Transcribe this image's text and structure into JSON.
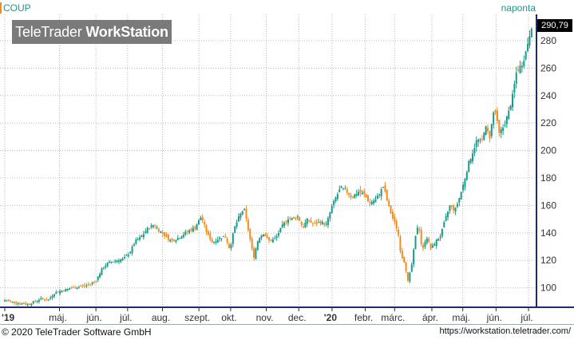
{
  "header": {
    "ticker": "COUP",
    "period": "naponta",
    "logo_light": "TeleTrader ",
    "logo_bold": "WorkStation"
  },
  "last_price_label": "290,79",
  "footer": {
    "copyright": "© 2020 TeleTrader Software GmbH",
    "url": "https://workstation.teletrader.com/"
  },
  "colors": {
    "up": "#1a9a86",
    "down": "#f28c1e",
    "grid": "#b8b8b8",
    "axis": "#1d2a6b"
  },
  "chart_data": {
    "type": "candlestick",
    "ylim": [
      87,
      298
    ],
    "y_ticks": [
      100,
      120,
      140,
      160,
      180,
      200,
      220,
      240,
      260,
      280
    ],
    "y_tick_labels": [
      "100",
      "120",
      "140",
      "160",
      "180",
      "200",
      "220",
      "240",
      "260",
      "280"
    ],
    "x_labels": [
      {
        "label": "'19",
        "bold": true,
        "t": 0
      },
      {
        "label": "máj.",
        "t": 69
      },
      {
        "label": "jún.",
        "t": 115
      },
      {
        "label": "júl.",
        "t": 155
      },
      {
        "label": "aug.",
        "t": 199
      },
      {
        "label": "szept.",
        "t": 245
      },
      {
        "label": "okt.",
        "t": 285
      },
      {
        "label": "nov.",
        "t": 330
      },
      {
        "label": "dec.",
        "t": 371
      },
      {
        "label": "'20",
        "bold": true,
        "t": 413
      },
      {
        "label": "febr.",
        "t": 455
      },
      {
        "label": "márc.",
        "t": 492
      },
      {
        "label": "ápr.",
        "t": 539
      },
      {
        "label": "máj.",
        "t": 578
      },
      {
        "label": "jún.",
        "t": 620
      },
      {
        "label": "júl.",
        "t": 661
      }
    ],
    "t_range": [
      0,
      667
    ],
    "closes": [
      {
        "t": 0,
        "v": 91
      },
      {
        "t": 15,
        "v": 89
      },
      {
        "t": 30,
        "v": 88
      },
      {
        "t": 45,
        "v": 92
      },
      {
        "t": 55,
        "v": 91
      },
      {
        "t": 62,
        "v": 96
      },
      {
        "t": 72,
        "v": 98
      },
      {
        "t": 85,
        "v": 100
      },
      {
        "t": 95,
        "v": 101
      },
      {
        "t": 105,
        "v": 102
      },
      {
        "t": 115,
        "v": 105
      },
      {
        "t": 122,
        "v": 113
      },
      {
        "t": 130,
        "v": 118
      },
      {
        "t": 140,
        "v": 120
      },
      {
        "t": 150,
        "v": 121
      },
      {
        "t": 158,
        "v": 126
      },
      {
        "t": 165,
        "v": 134
      },
      {
        "t": 172,
        "v": 137
      },
      {
        "t": 180,
        "v": 143
      },
      {
        "t": 188,
        "v": 146
      },
      {
        "t": 195,
        "v": 142
      },
      {
        "t": 202,
        "v": 138
      },
      {
        "t": 210,
        "v": 134
      },
      {
        "t": 218,
        "v": 136
      },
      {
        "t": 228,
        "v": 140
      },
      {
        "t": 240,
        "v": 144
      },
      {
        "t": 248,
        "v": 152
      },
      {
        "t": 255,
        "v": 140
      },
      {
        "t": 262,
        "v": 133
      },
      {
        "t": 270,
        "v": 136
      },
      {
        "t": 278,
        "v": 138
      },
      {
        "t": 284,
        "v": 128
      },
      {
        "t": 290,
        "v": 144
      },
      {
        "t": 296,
        "v": 152
      },
      {
        "t": 302,
        "v": 158
      },
      {
        "t": 308,
        "v": 140
      },
      {
        "t": 314,
        "v": 122
      },
      {
        "t": 320,
        "v": 136
      },
      {
        "t": 326,
        "v": 140
      },
      {
        "t": 334,
        "v": 134
      },
      {
        "t": 342,
        "v": 136
      },
      {
        "t": 350,
        "v": 145
      },
      {
        "t": 358,
        "v": 151
      },
      {
        "t": 364,
        "v": 150
      },
      {
        "t": 370,
        "v": 152
      },
      {
        "t": 376,
        "v": 144
      },
      {
        "t": 382,
        "v": 150
      },
      {
        "t": 390,
        "v": 146
      },
      {
        "t": 398,
        "v": 148
      },
      {
        "t": 406,
        "v": 146
      },
      {
        "t": 412,
        "v": 158
      },
      {
        "t": 418,
        "v": 166
      },
      {
        "t": 424,
        "v": 173
      },
      {
        "t": 430,
        "v": 171
      },
      {
        "t": 438,
        "v": 166
      },
      {
        "t": 446,
        "v": 170
      },
      {
        "t": 454,
        "v": 168
      },
      {
        "t": 460,
        "v": 162
      },
      {
        "t": 468,
        "v": 164
      },
      {
        "t": 474,
        "v": 170
      },
      {
        "t": 478,
        "v": 174
      },
      {
        "t": 484,
        "v": 160
      },
      {
        "t": 490,
        "v": 150
      },
      {
        "t": 496,
        "v": 142
      },
      {
        "t": 500,
        "v": 124
      },
      {
        "t": 505,
        "v": 118
      },
      {
        "t": 509,
        "v": 104
      },
      {
        "t": 514,
        "v": 118
      },
      {
        "t": 518,
        "v": 136
      },
      {
        "t": 522,
        "v": 148
      },
      {
        "t": 527,
        "v": 126
      },
      {
        "t": 532,
        "v": 138
      },
      {
        "t": 538,
        "v": 128
      },
      {
        "t": 544,
        "v": 134
      },
      {
        "t": 550,
        "v": 138
      },
      {
        "t": 556,
        "v": 150
      },
      {
        "t": 562,
        "v": 160
      },
      {
        "t": 568,
        "v": 156
      },
      {
        "t": 574,
        "v": 166
      },
      {
        "t": 580,
        "v": 178
      },
      {
        "t": 585,
        "v": 190
      },
      {
        "t": 590,
        "v": 198
      },
      {
        "t": 596,
        "v": 208
      },
      {
        "t": 602,
        "v": 206
      },
      {
        "t": 606,
        "v": 218
      },
      {
        "t": 612,
        "v": 210
      },
      {
        "t": 618,
        "v": 232
      },
      {
        "t": 624,
        "v": 212
      },
      {
        "t": 630,
        "v": 218
      },
      {
        "t": 636,
        "v": 228
      },
      {
        "t": 641,
        "v": 240
      },
      {
        "t": 646,
        "v": 258
      },
      {
        "t": 652,
        "v": 262
      },
      {
        "t": 657,
        "v": 270
      },
      {
        "t": 662,
        "v": 284
      },
      {
        "t": 667,
        "v": 290.79
      }
    ]
  }
}
